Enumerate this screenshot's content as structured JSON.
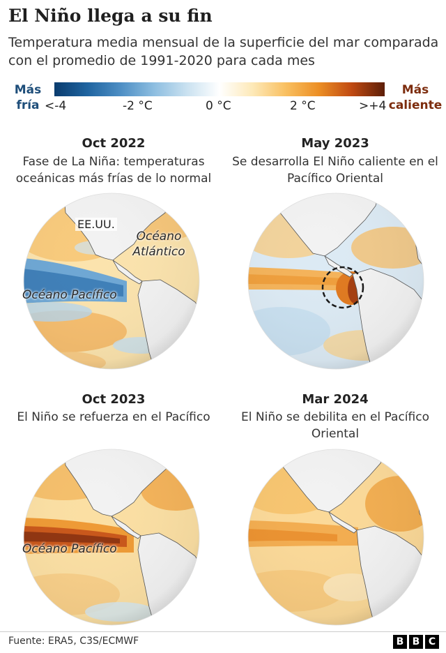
{
  "title": "El Niño llega a su fin",
  "subtitle": "Temperatura media mensual de la superficie del mar comparada con el promedio de 1991-2020 para cada mes",
  "legend": {
    "cold_label": "Más fría",
    "hot_label": "Más caliente",
    "ticks": [
      "<-4",
      "-2 °C",
      "0 °C",
      "2 °C",
      ">+4"
    ],
    "cold_color": "#1e4e7a",
    "hot_color": "#7d2d0e"
  },
  "panels": [
    {
      "title": "Oct 2022",
      "description": "Fase de La Niña: temperaturas oceánicas más frías de lo normal",
      "labels": [
        "EE.UU.",
        "Océano Atlántico",
        "Océano Pacífico"
      ]
    },
    {
      "title": "May 2023",
      "description": "Se desarrolla El Niño caliente en el Pacífico Oriental",
      "labels": []
    },
    {
      "title": "Oct 2023",
      "description": "El Niño se refuerza en el Pacífico",
      "labels": [
        "Océano Pacífico"
      ]
    },
    {
      "title": "Mar 2024",
      "description": "El Niño se debilita en el Pacífico Oriental",
      "labels": []
    }
  ],
  "footer": {
    "source": "Fuente: ERA5, C3S/ECMWF",
    "logo": [
      "B",
      "B",
      "C"
    ]
  }
}
